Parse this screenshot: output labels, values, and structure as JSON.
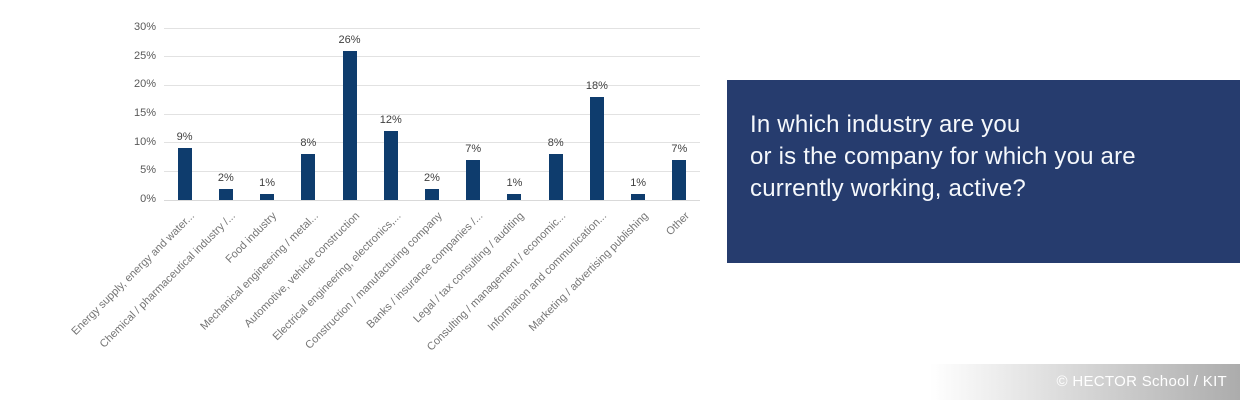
{
  "chart_data": {
    "type": "bar",
    "title": "",
    "categories": [
      "Energy supply, energy and water...",
      "Chemical / pharmaceutical industry /...",
      "Food industry",
      "Mechanical engineering / metal...",
      "Automotive, vehicle construction",
      "Electrical engineering, electronics,...",
      "Construction / manufacturing company",
      "Banks / insurance companies /...",
      "Legal / tax consulting / auditing",
      "Consulting / management / economic...",
      "Information and communication...",
      "Marketing / advertising publishing",
      "Other"
    ],
    "values": [
      9,
      2,
      1,
      8,
      26,
      12,
      2,
      7,
      1,
      8,
      18,
      1,
      7
    ],
    "value_labels": [
      "9%",
      "2%",
      "1%",
      "8%",
      "26%",
      "12%",
      "2%",
      "7%",
      "1%",
      "8%",
      "18%",
      "1%",
      "7%"
    ],
    "yticks": [
      0,
      5,
      10,
      15,
      20,
      25,
      30
    ],
    "ytick_labels": [
      "0%",
      "5%",
      "10%",
      "15%",
      "20%",
      "25%",
      "30%"
    ],
    "ylim": [
      0,
      30
    ],
    "grid": true,
    "legend": false,
    "xlabel": "",
    "ylabel": "",
    "bar_color": "#0e3c6d",
    "gridline_color": "#e2e2e2",
    "axis_line_color": "#d9d9d9",
    "ytick_label_color": "#595959",
    "category_label_color": "#757575",
    "value_label_color": "#404040"
  },
  "question_box": {
    "lines": [
      "In which industry are you",
      "or is the company for which you are",
      "currently working, active?"
    ],
    "bg_color": "#263c6e",
    "text_color": "#f5f8fc"
  },
  "footer": {
    "credit": "© HECTOR School / KIT",
    "gradient_end_color": "#acacac"
  }
}
